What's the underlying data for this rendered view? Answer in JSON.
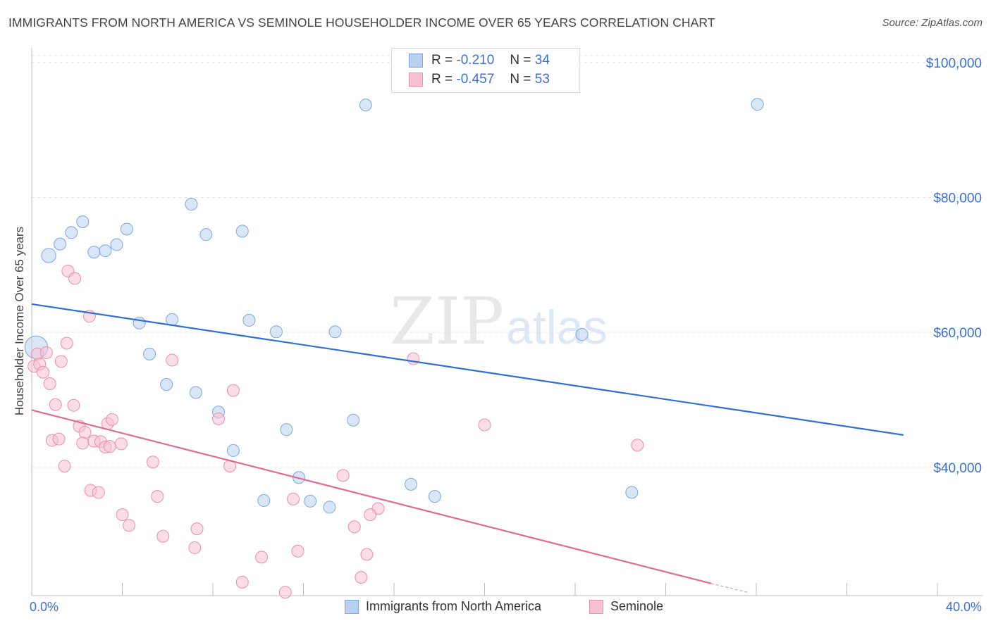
{
  "header": {
    "title": "IMMIGRANTS FROM NORTH AMERICA VS SEMINOLE HOUSEHOLDER INCOME OVER 65 YEARS CORRELATION CHART",
    "source": "Source: ZipAtlas.com"
  },
  "watermark": {
    "zip": "ZIP",
    "atlas": "atlas"
  },
  "legend_top": {
    "r_label": "R =",
    "n_label": "N =",
    "rows": [
      {
        "r": "-0.210",
        "n": "34"
      },
      {
        "r": "-0.457",
        "n": "53"
      }
    ]
  },
  "colors": {
    "blue_fill": "#b9d1f1",
    "blue_stroke": "#7da7e0",
    "blue_line": "#2e6fd1",
    "pink_fill": "#f7c1d2",
    "pink_stroke": "#ea8fae",
    "pink_line": "#e06a95",
    "tick_text": "#3a6fd8"
  },
  "chart_data": {
    "type": "scatter",
    "xlabel": "",
    "ylabel": "Householder Income Over 65 years",
    "x_tick_labels": [
      "0.0%",
      "40.0%"
    ],
    "y_tick_labels": [
      "$40,000",
      "$60,000",
      "$80,000",
      "$100,000"
    ],
    "xlim": [
      0,
      40
    ],
    "ylim": [
      21000,
      103000
    ],
    "y_ticks": [
      40000,
      60000,
      80000,
      100000
    ],
    "grid": true,
    "series": [
      {
        "name": "Immigrants from North America",
        "color": "blue",
        "r": -0.21,
        "n": 34,
        "trend": [
          [
            0,
            64200
          ],
          [
            38.5,
            44800
          ]
        ],
        "points": [
          [
            0.2,
            57800,
            1.9
          ],
          [
            0.75,
            71400,
            1.2
          ],
          [
            1.25,
            73100,
            1
          ],
          [
            1.75,
            74800,
            1
          ],
          [
            2.25,
            76400,
            1
          ],
          [
            2.75,
            71900,
            1
          ],
          [
            3.25,
            72100,
            1
          ],
          [
            3.75,
            73000,
            1
          ],
          [
            4.2,
            75300,
            1
          ],
          [
            7.05,
            79000,
            1
          ],
          [
            7.7,
            74500,
            1
          ],
          [
            9.3,
            75000,
            1
          ],
          [
            14.75,
            93700,
            1
          ],
          [
            32.05,
            93800,
            1
          ],
          [
            4.75,
            61400,
            1
          ],
          [
            6.2,
            61900,
            1
          ],
          [
            9.6,
            61800,
            1
          ],
          [
            10.8,
            60100,
            1
          ],
          [
            13.4,
            60100,
            1
          ],
          [
            24.3,
            59700,
            1
          ],
          [
            5.2,
            56800,
            1
          ],
          [
            5.95,
            52300,
            1
          ],
          [
            7.25,
            51100,
            1
          ],
          [
            8.25,
            48200,
            1
          ],
          [
            11.25,
            45600,
            1
          ],
          [
            14.2,
            47000,
            1
          ],
          [
            8.9,
            42500,
            1
          ],
          [
            11.8,
            38500,
            1
          ],
          [
            10.25,
            35100,
            1
          ],
          [
            12.3,
            35000,
            1
          ],
          [
            13.15,
            34100,
            1
          ],
          [
            16.75,
            37500,
            1
          ],
          [
            17.8,
            35700,
            1
          ],
          [
            26.5,
            36300,
            1
          ]
        ]
      },
      {
        "name": "Seminole",
        "color": "pink",
        "r": -0.457,
        "n": 53,
        "trend": [
          [
            0,
            48500
          ],
          [
            30,
            22800
          ]
        ],
        "trend_dashed": [
          [
            30,
            22800
          ],
          [
            31.6,
            21500
          ]
        ],
        "points": [
          [
            0.1,
            55000,
            1
          ],
          [
            0.25,
            56800,
            1
          ],
          [
            0.35,
            55300,
            1
          ],
          [
            0.5,
            54100,
            1
          ],
          [
            0.65,
            57000,
            1
          ],
          [
            0.8,
            52400,
            1
          ],
          [
            1.3,
            55700,
            1
          ],
          [
            1.55,
            58400,
            1
          ],
          [
            1.05,
            49300,
            1
          ],
          [
            1.85,
            49200,
            1
          ],
          [
            1.6,
            69100,
            1
          ],
          [
            1.9,
            68000,
            1
          ],
          [
            2.55,
            62400,
            1
          ],
          [
            6.2,
            55900,
            1
          ],
          [
            8.9,
            51400,
            1
          ],
          [
            16.85,
            56100,
            1
          ],
          [
            0.9,
            44000,
            1
          ],
          [
            1.2,
            44200,
            1
          ],
          [
            2.1,
            46100,
            1
          ],
          [
            2.35,
            45200,
            1
          ],
          [
            2.25,
            43600,
            1
          ],
          [
            2.75,
            43900,
            1
          ],
          [
            3.05,
            43800,
            1
          ],
          [
            3.25,
            43000,
            1
          ],
          [
            3.35,
            46500,
            1
          ],
          [
            3.55,
            47100,
            1
          ],
          [
            3.45,
            43100,
            1
          ],
          [
            3.95,
            43500,
            1
          ],
          [
            8.25,
            47200,
            1
          ],
          [
            20.0,
            46300,
            1
          ],
          [
            26.75,
            43300,
            1
          ],
          [
            1.45,
            40200,
            1
          ],
          [
            5.35,
            40800,
            1
          ],
          [
            8.75,
            40200,
            1
          ],
          [
            13.75,
            38800,
            1
          ],
          [
            2.6,
            36600,
            1
          ],
          [
            2.95,
            36300,
            1
          ],
          [
            5.55,
            35700,
            1
          ],
          [
            11.55,
            35300,
            1
          ],
          [
            15.3,
            33900,
            1
          ],
          [
            4.0,
            33000,
            1
          ],
          [
            4.3,
            31400,
            1
          ],
          [
            5.8,
            29800,
            1
          ],
          [
            7.3,
            30900,
            1
          ],
          [
            14.25,
            31200,
            1
          ],
          [
            14.95,
            33000,
            1
          ],
          [
            7.2,
            28100,
            1
          ],
          [
            10.15,
            26700,
            1
          ],
          [
            11.75,
            27600,
            1
          ],
          [
            14.8,
            27100,
            1
          ],
          [
            9.3,
            23000,
            1
          ],
          [
            11.2,
            21500,
            1
          ],
          [
            14.55,
            23700,
            1
          ]
        ]
      }
    ]
  }
}
